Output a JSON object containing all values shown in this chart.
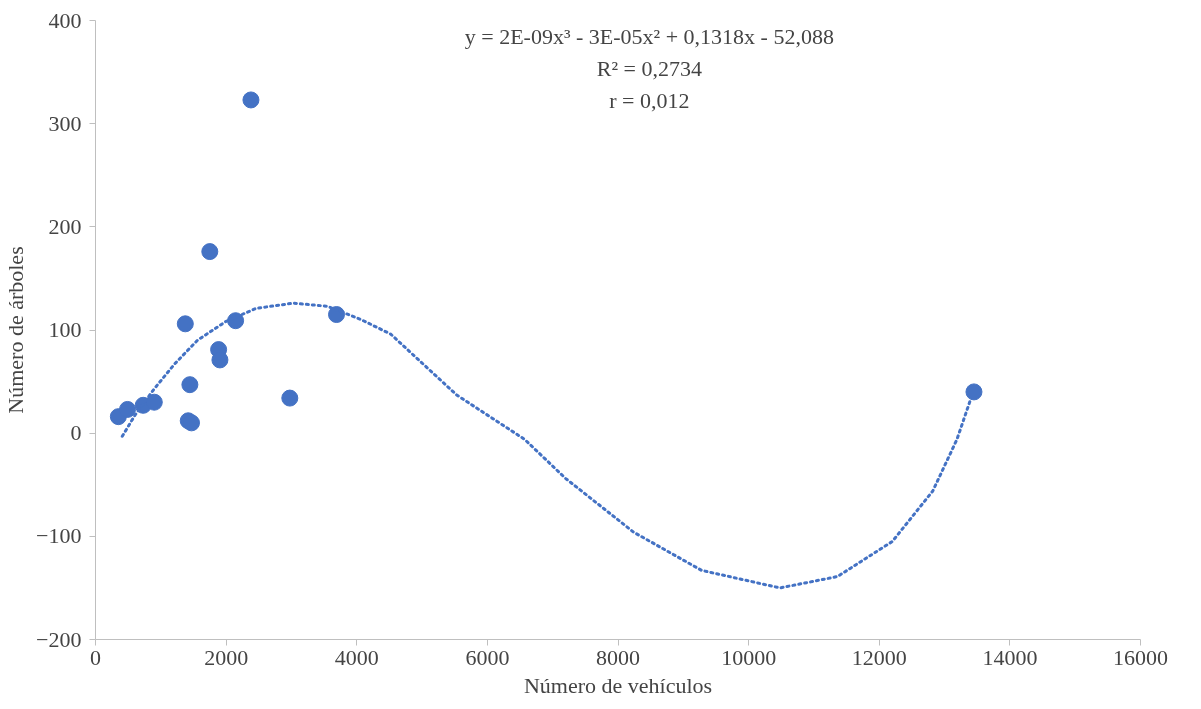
{
  "chart_data": {
    "type": "scatter",
    "xlabel": "Número de vehículos",
    "ylabel": "Número de árboles",
    "xlim": [
      0,
      16000
    ],
    "xticks": [
      0,
      2000,
      4000,
      6000,
      8000,
      10000,
      12000,
      14000,
      16000
    ],
    "ylim": [
      -200,
      400
    ],
    "yticks": [
      -200,
      -100,
      0,
      100,
      200,
      300,
      400
    ],
    "grid": false,
    "annotations": [
      "y = 2E-09x³ - 3E-05x² + 0,1318x - 52,088",
      "R² = 0,2734",
      "r = 0,012"
    ],
    "series": [
      {
        "marker": "circle",
        "color": "#4472c4",
        "x": [
          350,
          490,
          730,
          900,
          1375,
          1420,
          1470,
          1445,
          1750,
          1885,
          1905,
          2145,
          2380,
          2975,
          3690,
          13450
        ],
        "values": [
          16,
          23,
          27,
          30,
          106,
          12,
          10,
          47,
          176,
          81,
          71,
          109,
          323,
          34,
          115,
          40
        ]
      },
      {
        "type": "line",
        "line_style": "dotted",
        "color": "#4472c4",
        "x": [
          410,
          610,
          900,
          1210,
          1560,
          1990,
          2460,
          3030,
          3550,
          4070,
          4520,
          5530,
          6570,
          7200,
          8240,
          9280,
          10480,
          11360,
          12200,
          12820,
          13190,
          13400
        ],
        "values": [
          -3,
          18,
          43,
          67,
          90,
          108,
          121,
          126,
          123,
          110,
          96,
          37,
          -6,
          -44,
          -96,
          -133,
          -150,
          -139,
          -105,
          -56,
          -6,
          33
        ]
      }
    ]
  }
}
